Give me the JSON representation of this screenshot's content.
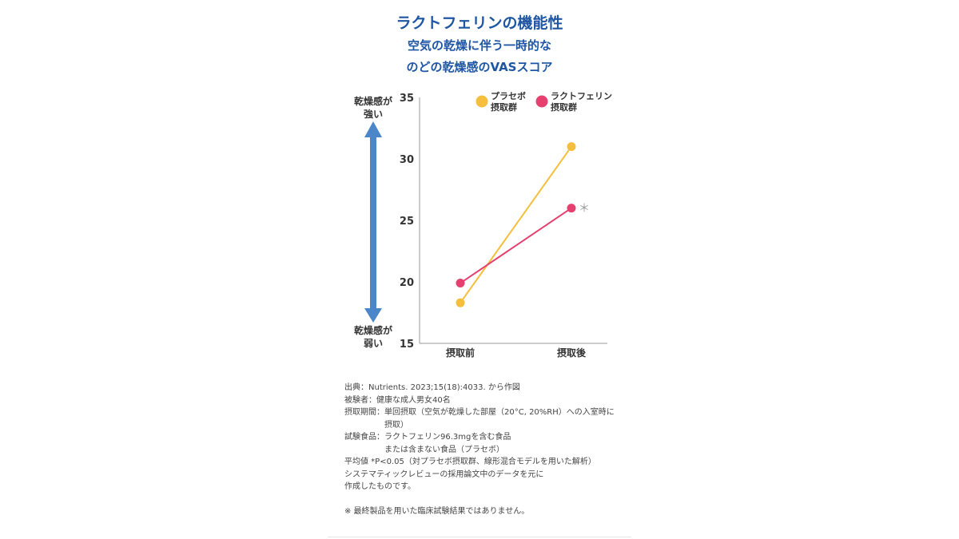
{
  "title": "ラクトフェリンの機能性",
  "subtitle_lines": [
    "空気の乾燥に伴う一時的な",
    "のどの乾燥感のVASスコア"
  ],
  "colors": {
    "title": "#1f56a3",
    "arrow": "#4a86c8",
    "placebo": "#f5be3c",
    "lactoferrin": "#e5406f",
    "axis": "#999999"
  },
  "arrow_labels": {
    "top_line1": "乾燥感が",
    "top_line2": "強い",
    "bottom_line1": "乾燥感が",
    "bottom_line2": "弱い"
  },
  "significance_mark": "＊",
  "chart_data": {
    "type": "line",
    "categories": [
      "摂取前",
      "摂取後"
    ],
    "ylim": [
      15,
      35
    ],
    "yticks": [
      15,
      20,
      25,
      30,
      35
    ],
    "series": [
      {
        "name": "プラセボ摂取群",
        "legend_lines": [
          "プラセボ",
          "摂取群"
        ],
        "color": "#f5be3c",
        "values": [
          18.3,
          31.0
        ]
      },
      {
        "name": "ラクトフェリン摂取群",
        "legend_lines": [
          "ラクトフェリン",
          "摂取群"
        ],
        "color": "#e5406f",
        "values": [
          19.9,
          26.0
        ]
      }
    ],
    "legend_position": "top-right",
    "grid": false
  },
  "notes": [
    "出典：Nutrients. 2023;15(18):4033. から作図",
    "被験者：健康な成人男女40名",
    "摂取期間：単回摂取（空気が乾燥した部屋（20°C, 20%RH）への入室時に",
    "　　　　　摂取）",
    "試験食品：ラクトフェリン96.3mgを含む食品",
    "　　　　　または含まない食品（プラセボ）",
    "平均値 *P<0.05（対プラセボ摂取群、線形混合モデルを用いた解析）",
    "システマティックレビューの採用論文中のデータを元に",
    "作成したものです。",
    "",
    "※ 最終製品を用いた臨床試験結果ではありません。"
  ]
}
